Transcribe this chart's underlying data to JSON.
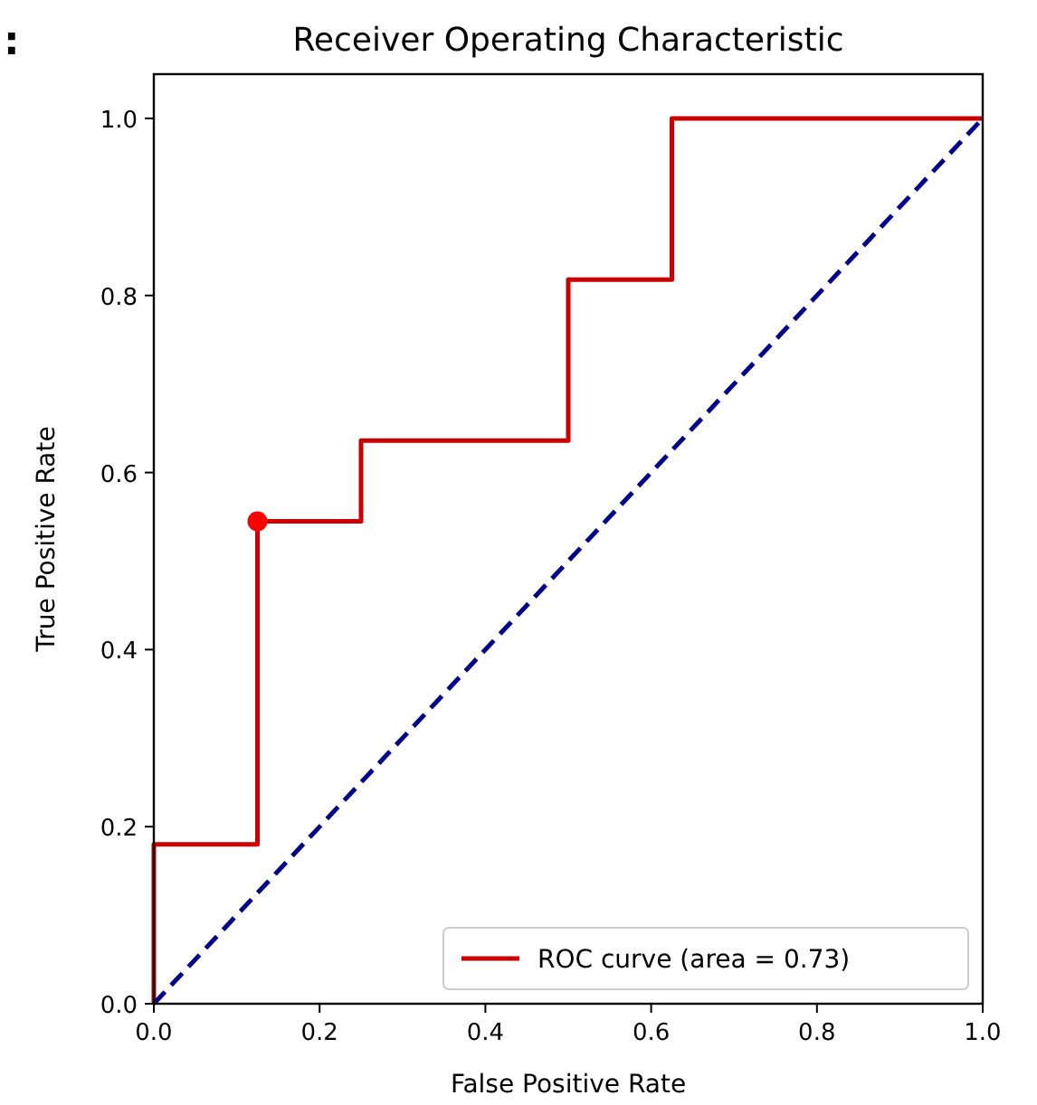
{
  "chart_data": {
    "type": "line",
    "title": "Receiver Operating Characteristic",
    "xlabel": "False Positive Rate",
    "ylabel": "True Positive Rate",
    "annotations": [
      ":"
    ],
    "xlim": [
      0,
      1
    ],
    "ylim": [
      0,
      1.05
    ],
    "xticks": [
      {
        "value": 0,
        "label": "0.0"
      },
      0.2,
      0.4,
      0.6,
      0.8,
      {
        "value": 1,
        "label": "1.0"
      }
    ],
    "yticks": [
      {
        "value": 0,
        "label": "0.0"
      },
      0.2,
      0.4,
      0.6,
      0.8,
      {
        "value": 1,
        "label": "1.0"
      }
    ],
    "grid": false,
    "legend": "bottom right",
    "line_style": "solid",
    "marker": "none",
    "series": [
      {
        "name": "ROC curve (area = 0.73)",
        "color": "#cc0000",
        "x": [
          0,
          0,
          0.125,
          0.125,
          0.25,
          0.25,
          0.5,
          0.5,
          0.625,
          0.625,
          1
        ],
        "values": [
          0,
          0.18,
          0.18,
          0.545,
          0.545,
          0.636,
          0.636,
          0.818,
          0.818,
          1,
          1
        ]
      },
      {
        "color": "#00008b",
        "type": "line",
        "line_style": "dashed",
        "x": [
          0,
          1
        ],
        "values": [
          0,
          1
        ]
      },
      {
        "color": "#ff0000",
        "type": "scatter",
        "marker": "circle",
        "x": [
          0.125
        ],
        "values": [
          0.545
        ]
      }
    ]
  }
}
